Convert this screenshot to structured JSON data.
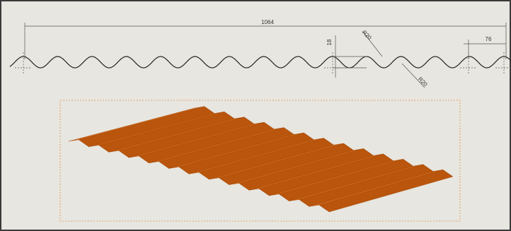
{
  "dimensions": {
    "overall_width": "1064",
    "wave_height": "18",
    "radius_top": "R20",
    "radius_bottom": "R20",
    "pitch": "76"
  }
}
